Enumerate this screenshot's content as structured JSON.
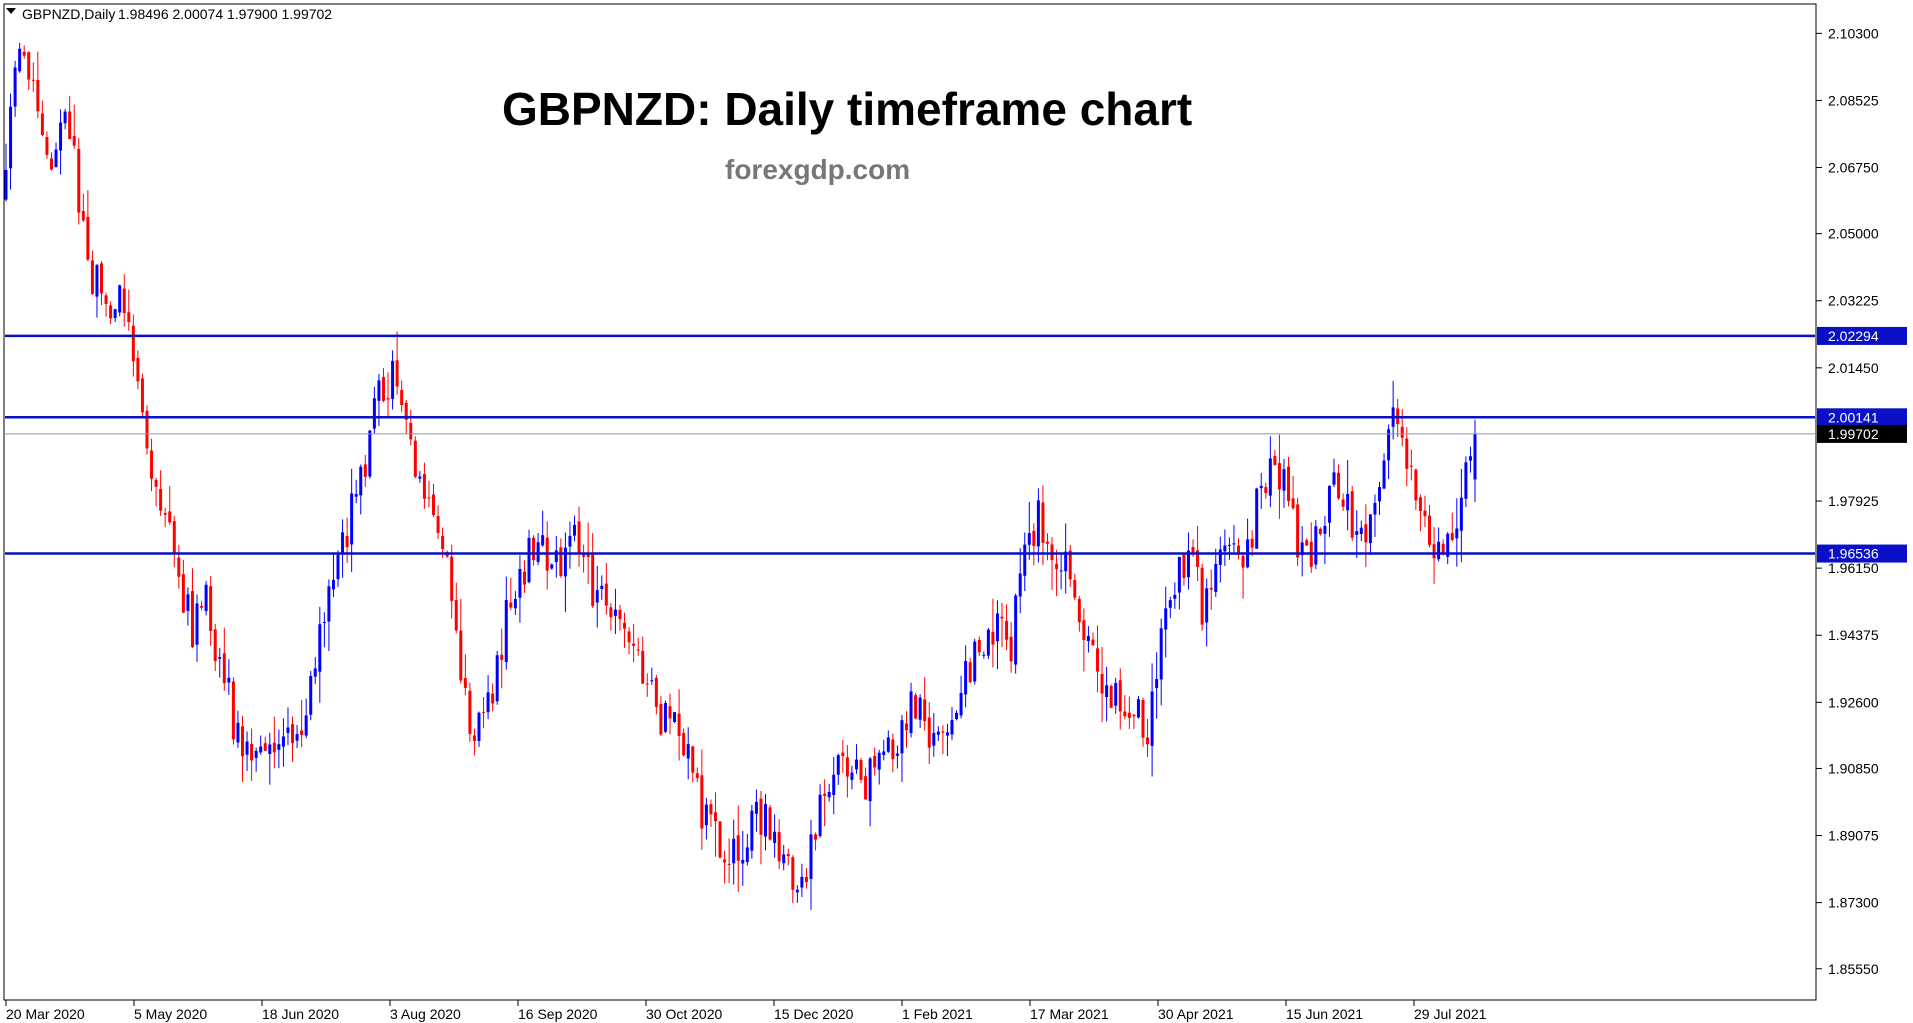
{
  "header": {
    "symbol": "GBPNZD,Daily",
    "ohlc": "1.98496 2.00074 1.97900 1.99702"
  },
  "annotations": {
    "title": "GBPNZD: Daily timeframe chart",
    "watermark": "forexgdp.com"
  },
  "colors": {
    "bull": "#0000ff",
    "bear": "#ff0000",
    "level_line": "#0a10c8",
    "current_line": "#8899aa",
    "frame": "#000000",
    "background": "#ffffff"
  },
  "chart_data": {
    "type": "candlestick",
    "instrument": "GBPNZD",
    "timeframe": "Daily",
    "ylim": [
      1.8475,
      2.1105
    ],
    "y_ticks": [
      2.103,
      2.08525,
      2.0675,
      2.05,
      2.03225,
      2.0145,
      1.97925,
      1.9615,
      1.94375,
      1.926,
      1.9085,
      1.89075,
      1.873,
      1.8555
    ],
    "y_tick_labels": [
      "2.10300",
      "2.08525",
      "2.06750",
      "2.05000",
      "2.03225",
      "2.01450",
      "1.97925",
      "1.96150",
      "1.94375",
      "1.92600",
      "1.90850",
      "1.89075",
      "1.87300",
      "1.85550"
    ],
    "x_tick_labels": [
      "20 Mar 2020",
      "5 May 2020",
      "18 Jun 2020",
      "3 Aug 2020",
      "16 Sep 2020",
      "30 Oct 2020",
      "15 Dec 2020",
      "1 Feb 2021",
      "17 Mar 2021",
      "30 Apr 2021",
      "15 Jun 2021",
      "29 Jul 2021"
    ],
    "horizontal_levels": [
      {
        "value": 2.02294,
        "label": "2.02294"
      },
      {
        "value": 2.00141,
        "label": "2.00141"
      },
      {
        "value": 1.96536,
        "label": "1.96536"
      }
    ],
    "current_price": {
      "value": 1.99702,
      "label": "1.99702"
    },
    "last_bar": {
      "open": 1.98496,
      "high": 2.00074,
      "low": 1.979,
      "close": 1.99702
    },
    "price_path": [
      [
        0,
        2.06
      ],
      [
        4,
        2.1
      ],
      [
        7,
        2.085
      ],
      [
        10,
        2.068
      ],
      [
        14,
        2.082
      ],
      [
        17,
        2.06
      ],
      [
        20,
        2.04
      ],
      [
        24,
        2.025
      ],
      [
        27,
        2.034
      ],
      [
        30,
        2.012
      ],
      [
        33,
        1.99
      ],
      [
        36,
        1.978
      ],
      [
        39,
        1.958
      ],
      [
        42,
        1.945
      ],
      [
        45,
        1.952
      ],
      [
        48,
        1.936
      ],
      [
        51,
        1.922
      ],
      [
        54,
        1.914
      ],
      [
        57,
        1.918
      ],
      [
        60,
        1.91
      ],
      [
        63,
        1.914
      ],
      [
        66,
        1.92
      ],
      [
        69,
        1.935
      ],
      [
        72,
        1.958
      ],
      [
        75,
        1.968
      ],
      [
        78,
        1.982
      ],
      [
        80,
        1.99
      ],
      [
        83,
        2.008
      ],
      [
        86,
        2.012
      ],
      [
        89,
        2.0
      ],
      [
        92,
        1.985
      ],
      [
        95,
        1.978
      ],
      [
        98,
        1.96
      ],
      [
        100,
        1.94
      ],
      [
        103,
        1.922
      ],
      [
        106,
        1.918
      ],
      [
        109,
        1.935
      ],
      [
        112,
        1.955
      ],
      [
        115,
        1.962
      ],
      [
        118,
        1.968
      ],
      [
        121,
        1.96
      ],
      [
        124,
        1.968
      ],
      [
        127,
        1.97
      ],
      [
        130,
        1.955
      ],
      [
        133,
        1.952
      ],
      [
        136,
        1.945
      ],
      [
        139,
        1.938
      ],
      [
        142,
        1.93
      ],
      [
        145,
        1.922
      ],
      [
        148,
        1.918
      ],
      [
        151,
        1.91
      ],
      [
        154,
        1.898
      ],
      [
        157,
        1.892
      ],
      [
        160,
        1.888
      ],
      [
        163,
        1.88
      ],
      [
        166,
        1.898
      ],
      [
        169,
        1.892
      ],
      [
        172,
        1.886
      ],
      [
        174,
        1.876
      ],
      [
        177,
        1.882
      ],
      [
        180,
        1.896
      ],
      [
        183,
        1.905
      ],
      [
        186,
        1.91
      ],
      [
        189,
        1.904
      ],
      [
        192,
        1.908
      ],
      [
        195,
        1.912
      ],
      [
        198,
        1.92
      ],
      [
        201,
        1.926
      ],
      [
        204,
        1.92
      ],
      [
        207,
        1.912
      ],
      [
        210,
        1.928
      ],
      [
        213,
        1.935
      ],
      [
        216,
        1.94
      ],
      [
        219,
        1.945
      ],
      [
        222,
        1.942
      ],
      [
        225,
        1.968
      ],
      [
        228,
        1.975
      ],
      [
        231,
        1.968
      ],
      [
        234,
        1.96
      ],
      [
        237,
        1.95
      ],
      [
        240,
        1.938
      ],
      [
        243,
        1.93
      ],
      [
        246,
        1.925
      ],
      [
        249,
        1.922
      ],
      [
        252,
        1.92
      ],
      [
        255,
        1.942
      ],
      [
        258,
        1.958
      ],
      [
        261,
        1.968
      ],
      [
        264,
        1.95
      ],
      [
        267,
        1.96
      ],
      [
        270,
        1.965
      ],
      [
        273,
        1.962
      ],
      [
        276,
        1.978
      ],
      [
        279,
        1.99
      ],
      [
        282,
        1.985
      ],
      [
        285,
        1.97
      ],
      [
        288,
        1.965
      ],
      [
        291,
        1.975
      ],
      [
        294,
        1.985
      ],
      [
        297,
        1.972
      ],
      [
        300,
        1.968
      ],
      [
        303,
        1.985
      ],
      [
        306,
        2.001
      ],
      [
        309,
        1.988
      ],
      [
        312,
        1.972
      ],
      [
        315,
        1.97
      ],
      [
        318,
        1.966
      ],
      [
        320,
        1.972
      ],
      [
        323,
        1.997
      ]
    ]
  }
}
